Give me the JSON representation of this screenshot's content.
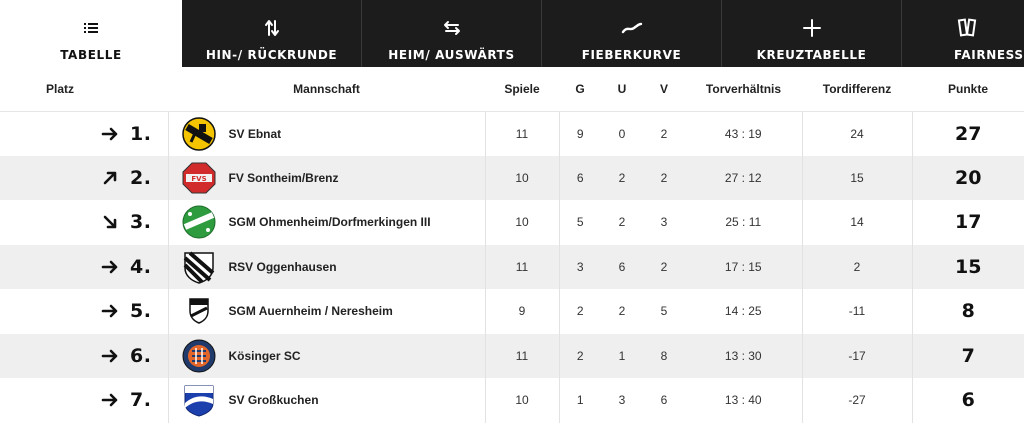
{
  "tabs": [
    {
      "label": "TABELLE",
      "icon": "list-icon",
      "active": true
    },
    {
      "label": "HIN-/ RÜCKRUNDE",
      "icon": "swap-vertical-icon",
      "active": false
    },
    {
      "label": "HEIM/ AUSWÄRTS",
      "icon": "swap-horizontal-icon",
      "active": false
    },
    {
      "label": "FIEBERKURVE",
      "icon": "trend-line-icon",
      "active": false
    },
    {
      "label": "KREUZTABELLE",
      "icon": "plus-icon",
      "active": false
    },
    {
      "label": "FAIRNESS",
      "icon": "cards-icon",
      "active": false
    }
  ],
  "columns": {
    "rank": "Platz",
    "team": "Mannschaft",
    "games": "Spiele",
    "won": "G",
    "draw": "U",
    "lost": "V",
    "goals": "Torverhältnis",
    "diff": "Tordifferenz",
    "points": "Punkte"
  },
  "rows": [
    {
      "trend": "right",
      "rank": "1.",
      "team": "SV Ebnat",
      "crest": "crest-ebnat",
      "games": "11",
      "won": "9",
      "draw": "0",
      "lost": "2",
      "goals": "43 : 19",
      "diff": "24",
      "points": "27"
    },
    {
      "trend": "up",
      "rank": "2.",
      "team": "FV Sontheim/Brenz",
      "crest": "crest-sontheim",
      "games": "10",
      "won": "6",
      "draw": "2",
      "lost": "2",
      "goals": "27 : 12",
      "diff": "15",
      "points": "20"
    },
    {
      "trend": "down",
      "rank": "3.",
      "team": "SGM Ohmenheim/Dorfmerkingen III",
      "crest": "crest-ohmenheim",
      "games": "10",
      "won": "5",
      "draw": "2",
      "lost": "3",
      "goals": "25 : 11",
      "diff": "14",
      "points": "17"
    },
    {
      "trend": "right",
      "rank": "4.",
      "team": "RSV Oggenhausen",
      "crest": "crest-oggenhausen",
      "games": "11",
      "won": "3",
      "draw": "6",
      "lost": "2",
      "goals": "17 : 15",
      "diff": "2",
      "points": "15"
    },
    {
      "trend": "right",
      "rank": "5.",
      "team": "SGM Auernheim / Neresheim",
      "crest": "crest-auernheim",
      "games": "9",
      "won": "2",
      "draw": "2",
      "lost": "5",
      "goals": "14 : 25",
      "diff": "-11",
      "points": "8"
    },
    {
      "trend": "right",
      "rank": "6.",
      "team": "Kösinger SC",
      "crest": "crest-koesingen",
      "games": "11",
      "won": "2",
      "draw": "1",
      "lost": "8",
      "goals": "13 : 30",
      "diff": "-17",
      "points": "7"
    },
    {
      "trend": "right",
      "rank": "7.",
      "team": "SV Großkuchen",
      "crest": "crest-grosskuchen",
      "games": "10",
      "won": "1",
      "draw": "3",
      "lost": "6",
      "goals": "13 : 40",
      "diff": "-27",
      "points": "6"
    }
  ]
}
